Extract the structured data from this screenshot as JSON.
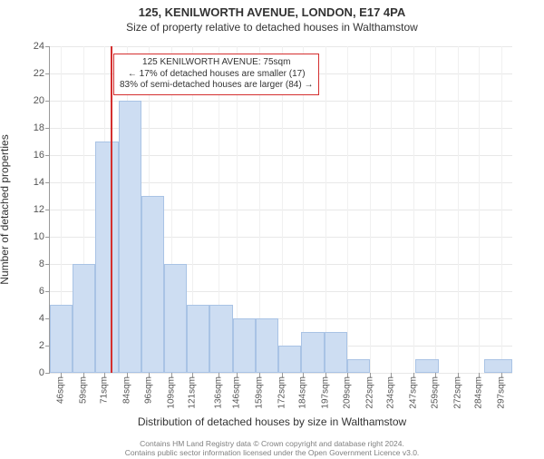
{
  "chart": {
    "type": "histogram",
    "title_main": "125, KENILWORTH AVENUE, LONDON, E17 4PA",
    "title_sub": "Size of property relative to detached houses in Walthamstow",
    "x_axis_label": "Distribution of detached houses by size in Walthamstow",
    "y_axis_label": "Number of detached properties",
    "background_color": "#ffffff",
    "grid_color": "#e8e8e8",
    "bar_fill": "#cdddf2",
    "bar_stroke": "#a9c3e5",
    "marker_color": "#d42f2f",
    "text_color": "#333333",
    "tick_color": "#555555",
    "ylim": [
      0,
      24
    ],
    "y_ticks": [
      0,
      2,
      4,
      6,
      8,
      10,
      12,
      14,
      16,
      18,
      20,
      22,
      24
    ],
    "x_range": [
      40,
      303
    ],
    "x_ticks": [
      46,
      59,
      71,
      84,
      96,
      109,
      121,
      136,
      146,
      159,
      172,
      184,
      197,
      209,
      222,
      234,
      247,
      259,
      272,
      284,
      297
    ],
    "x_tick_suffix": "sqm",
    "bars": [
      {
        "x0": 40,
        "x1": 53,
        "count": 5
      },
      {
        "x0": 53,
        "x1": 66,
        "count": 8
      },
      {
        "x0": 66,
        "x1": 79,
        "count": 17
      },
      {
        "x0": 79,
        "x1": 92,
        "count": 20
      },
      {
        "x0": 92,
        "x1": 105,
        "count": 13
      },
      {
        "x0": 105,
        "x1": 118,
        "count": 8
      },
      {
        "x0": 118,
        "x1": 131,
        "count": 5
      },
      {
        "x0": 131,
        "x1": 144,
        "count": 5
      },
      {
        "x0": 144,
        "x1": 157,
        "count": 4
      },
      {
        "x0": 157,
        "x1": 170,
        "count": 4
      },
      {
        "x0": 170,
        "x1": 183,
        "count": 2
      },
      {
        "x0": 183,
        "x1": 196,
        "count": 3
      },
      {
        "x0": 196,
        "x1": 209,
        "count": 3
      },
      {
        "x0": 209,
        "x1": 222,
        "count": 1
      },
      {
        "x0": 222,
        "x1": 235,
        "count": 0
      },
      {
        "x0": 235,
        "x1": 248,
        "count": 0
      },
      {
        "x0": 248,
        "x1": 261,
        "count": 1
      },
      {
        "x0": 261,
        "x1": 274,
        "count": 0
      },
      {
        "x0": 274,
        "x1": 287,
        "count": 0
      },
      {
        "x0": 287,
        "x1": 303,
        "count": 1
      }
    ],
    "marker": {
      "value": 75,
      "box_line1": "125 KENILWORTH AVENUE: 75sqm",
      "box_line2": "← 17% of detached houses are smaller (17)",
      "box_line3": "83% of semi-detached houses are larger (84) →"
    }
  },
  "footer": {
    "line1": "Contains HM Land Registry data © Crown copyright and database right 2024.",
    "line2": "Contains public sector information licensed under the Open Government Licence v3.0."
  }
}
